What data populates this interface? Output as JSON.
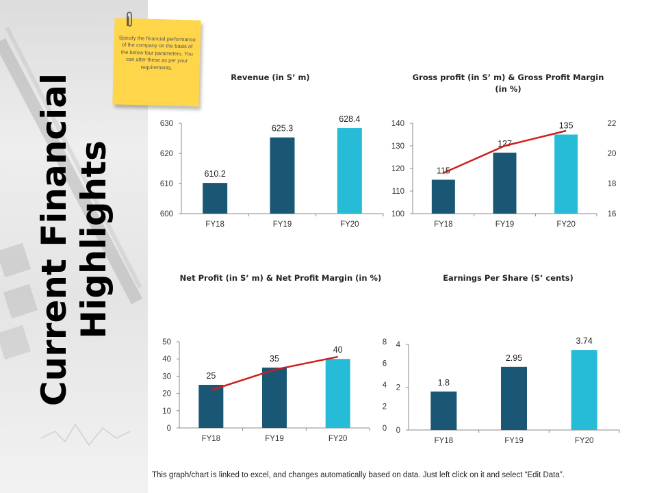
{
  "page": {
    "title": "Current Financial\nHighlights",
    "sticky_note": "Specify the financial performance of the company on the basis of the below four parameters. You can alter these as per your requirements.",
    "footer": "This graph/chart is linked to excel, and changes automatically based on data. Just left click on it and select “Edit Data”."
  },
  "colors": {
    "dark_bar": "#1a5775",
    "light_bar": "#26bcd7",
    "line": "#d01c1c",
    "axis": "#888888"
  },
  "chart_data": [
    {
      "type": "bar",
      "title": "Revenue (in S’ m)",
      "categories": [
        "FY18",
        "FY19",
        "FY20"
      ],
      "values": [
        610.2,
        625.3,
        628.4
      ],
      "data_labels": [
        "610.2",
        "625.3",
        "628.4"
      ],
      "ylim": [
        600,
        630
      ],
      "yticks": [
        600,
        610,
        620,
        630
      ],
      "grid": false
    },
    {
      "type": "bar",
      "title": "Gross profit (in S’ m) & Gross Profit Margin (in %)",
      "categories": [
        "FY18",
        "FY19",
        "FY20"
      ],
      "values": [
        115,
        127,
        135
      ],
      "data_labels": [
        "115",
        "127",
        "135"
      ],
      "ylim": [
        100,
        140
      ],
      "yticks": [
        100,
        110,
        120,
        130,
        140
      ],
      "y2lim": [
        16,
        22
      ],
      "y2ticks": [
        16,
        18,
        20,
        22
      ],
      "line_values": [
        18.7,
        20.5,
        21.5
      ],
      "grid": false
    },
    {
      "type": "bar",
      "title": "Net Profit (in S’ m) & Net Profit Margin (in %)",
      "categories": [
        "FY18",
        "FY19",
        "FY20"
      ],
      "values": [
        25,
        35,
        40
      ],
      "data_labels": [
        "25",
        "35",
        "40"
      ],
      "ylim": [
        0,
        50
      ],
      "yticks": [
        0,
        10,
        20,
        30,
        40,
        50
      ],
      "y2lim": [
        0,
        8
      ],
      "y2ticks": [
        0,
        2,
        4,
        6,
        8
      ],
      "line_values": [
        3.5,
        5.4,
        6.6
      ],
      "grid": false
    },
    {
      "type": "bar",
      "title": "Earnings Per Share (S’ cents)",
      "categories": [
        "FY18",
        "FY19",
        "FY20"
      ],
      "values": [
        1.8,
        2.95,
        3.74
      ],
      "data_labels": [
        "1.8",
        "2.95",
        "3.74"
      ],
      "ylim": [
        0,
        4
      ],
      "yticks": [
        0,
        2,
        4
      ],
      "grid": false
    }
  ]
}
